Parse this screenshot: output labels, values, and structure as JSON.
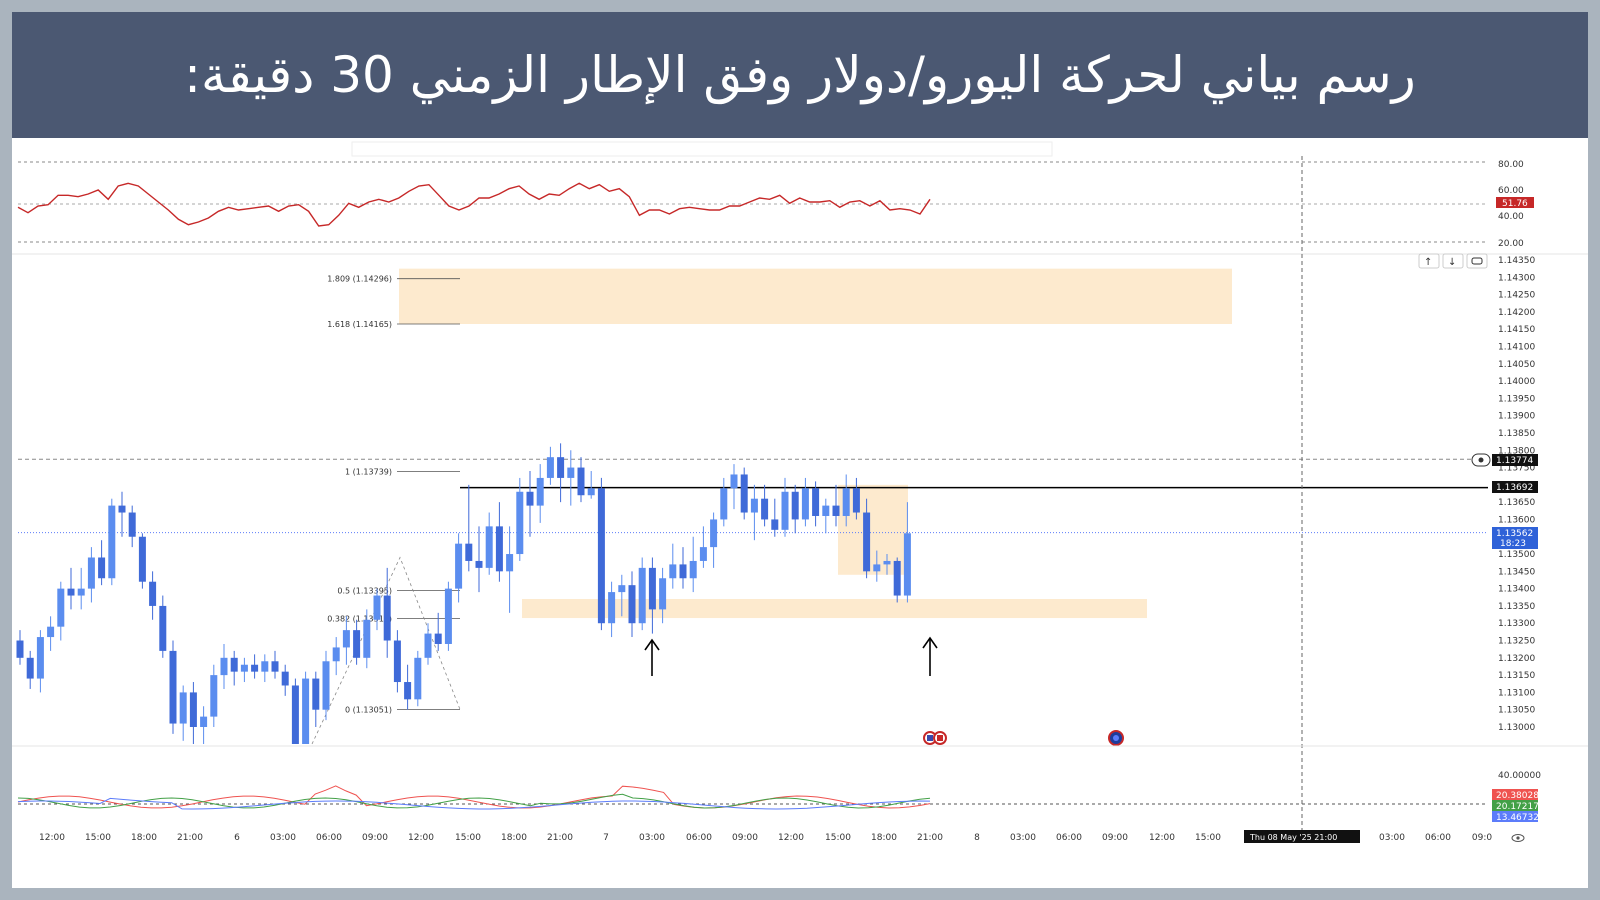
{
  "header": {
    "title": "رسم بياني لحركة اليورو/دولار وفق الإطار الزمني 30 دقيقة:"
  },
  "colors": {
    "up_candle": "#5b8def",
    "down_candle": "#3f6ad8",
    "zone_fill": "#fde6c6",
    "rsi_line": "#c62828",
    "resistance_line": "#000000",
    "adx_red": "#ef5350",
    "adx_green": "#43a047",
    "adx_blue": "#5c7cfa",
    "price_badge": "#2f62d8"
  },
  "rsi": {
    "levels": [
      "80.00",
      "60.00",
      "40.00",
      "20.00"
    ],
    "current_badge": "51.76",
    "values": [
      46,
      42,
      47,
      48,
      55,
      55,
      54,
      56,
      59,
      52,
      62,
      64,
      62,
      56,
      50,
      44,
      37,
      33,
      35,
      38,
      43,
      46,
      44,
      45,
      46,
      47,
      43,
      47,
      48,
      43,
      32,
      33,
      40,
      49,
      46,
      50,
      52,
      50,
      53,
      58,
      62,
      63,
      55,
      47,
      44,
      47,
      53,
      53,
      56,
      60,
      62,
      56,
      52,
      56,
      55,
      60,
      64,
      60,
      63,
      58,
      60,
      54,
      40,
      44,
      44,
      41,
      45,
      46,
      45,
      44,
      44,
      47,
      47,
      50,
      53,
      52,
      55,
      49,
      53,
      50,
      50,
      51,
      46,
      50,
      51,
      47,
      51,
      44,
      45,
      44,
      41,
      52
    ]
  },
  "price_axis": {
    "ticks": [
      "1.14350",
      "1.14300",
      "1.14250",
      "1.14200",
      "1.14150",
      "1.14100",
      "1.14050",
      "1.14000",
      "1.13950",
      "1.13900",
      "1.13850",
      "1.13800",
      "1.13750",
      "1.13650",
      "1.13600",
      "1.13500",
      "1.13450",
      "1.13400",
      "1.13350",
      "1.13300",
      "1.13250",
      "1.13200",
      "1.13150",
      "1.13100",
      "1.13050",
      "1.13000"
    ],
    "badge_crosshair": "1.13774",
    "badge_line": "1.13692",
    "badge_price": "1.13562",
    "badge_timer": "18:23"
  },
  "fib": {
    "levels": [
      {
        "label": "1.809 (1.14296)",
        "price": 1.14296
      },
      {
        "label": "1.618 (1.14165)",
        "price": 1.14165
      },
      {
        "label": "1 (1.13739)",
        "price": 1.13739
      },
      {
        "label": "0.5 (1.13395)",
        "price": 1.13395
      },
      {
        "label": "0.382 (1.13314)",
        "price": 1.13314
      },
      {
        "label": "0 (1.13051)",
        "price": 1.13051
      }
    ]
  },
  "levels": {
    "resistance": 1.13692,
    "crosshair": 1.13774,
    "current": 1.13562
  },
  "zones": [
    {
      "name": "target-zone",
      "top": 1.14325,
      "bottom": 1.14165
    },
    {
      "name": "support-zone",
      "top": 1.1337,
      "bottom": 1.13315
    },
    {
      "name": "consolidation-zone",
      "top": 1.137,
      "bottom": 1.1344
    }
  ],
  "time_axis": {
    "labels": [
      "12:00",
      "15:00",
      "18:00",
      "21:00",
      "6",
      "03:00",
      "06:00",
      "09:00",
      "12:00",
      "15:00",
      "18:00",
      "21:00",
      "7",
      "03:00",
      "06:00",
      "09:00",
      "12:00",
      "15:00",
      "18:00",
      "21:00",
      "8",
      "03:00",
      "06:00",
      "09:00",
      "12:00",
      "15:00",
      "03:00",
      "06:00",
      "09:0"
    ],
    "crosshair_label": "Thu 08 May '25   21:00"
  },
  "adx": {
    "top_label": "40.00000",
    "values": [
      "20.38028",
      "20.17217",
      "13.46732"
    ]
  },
  "candles": [
    [
      1.1325,
      1.1328,
      1.1318,
      1.132
    ],
    [
      1.132,
      1.1322,
      1.1311,
      1.1314
    ],
    [
      1.1314,
      1.1328,
      1.131,
      1.1326
    ],
    [
      1.1326,
      1.1332,
      1.1322,
      1.1329
    ],
    [
      1.1329,
      1.1342,
      1.1325,
      1.134
    ],
    [
      1.134,
      1.1346,
      1.1334,
      1.1338
    ],
    [
      1.1338,
      1.1346,
      1.1334,
      1.134
    ],
    [
      1.134,
      1.1352,
      1.1336,
      1.1349
    ],
    [
      1.1349,
      1.1354,
      1.1341,
      1.1343
    ],
    [
      1.1343,
      1.1366,
      1.1341,
      1.1364
    ],
    [
      1.1364,
      1.1368,
      1.1355,
      1.1362
    ],
    [
      1.1362,
      1.1364,
      1.1352,
      1.1355
    ],
    [
      1.1355,
      1.1356,
      1.134,
      1.1342
    ],
    [
      1.1342,
      1.1345,
      1.1331,
      1.1335
    ],
    [
      1.1335,
      1.1338,
      1.132,
      1.1322
    ],
    [
      1.1322,
      1.1325,
      1.1298,
      1.1301
    ],
    [
      1.1301,
      1.1312,
      1.1296,
      1.131
    ],
    [
      1.131,
      1.1313,
      1.1295,
      1.13
    ],
    [
      1.13,
      1.1306,
      1.1293,
      1.1303
    ],
    [
      1.1303,
      1.1318,
      1.13,
      1.1315
    ],
    [
      1.1315,
      1.1324,
      1.1311,
      1.132
    ],
    [
      1.132,
      1.1322,
      1.1312,
      1.1316
    ],
    [
      1.1316,
      1.132,
      1.1313,
      1.1318
    ],
    [
      1.1318,
      1.1321,
      1.1314,
      1.1316
    ],
    [
      1.1316,
      1.1321,
      1.1313,
      1.1319
    ],
    [
      1.1319,
      1.1322,
      1.1314,
      1.1316
    ],
    [
      1.1316,
      1.1318,
      1.1309,
      1.1312
    ],
    [
      1.1312,
      1.1314,
      1.129,
      1.1292
    ],
    [
      1.1292,
      1.1316,
      1.129,
      1.1314
    ],
    [
      1.1314,
      1.1316,
      1.13,
      1.1305
    ],
    [
      1.1305,
      1.1322,
      1.1302,
      1.1319
    ],
    [
      1.1319,
      1.1326,
      1.1315,
      1.1323
    ],
    [
      1.1323,
      1.1332,
      1.1318,
      1.1328
    ],
    [
      1.1328,
      1.1331,
      1.1318,
      1.132
    ],
    [
      1.132,
      1.1334,
      1.1317,
      1.1331
    ],
    [
      1.1331,
      1.134,
      1.1328,
      1.1338
    ],
    [
      1.1338,
      1.1346,
      1.132,
      1.1325
    ],
    [
      1.1325,
      1.1328,
      1.131,
      1.1313
    ],
    [
      1.1313,
      1.1318,
      1.1305,
      1.1308
    ],
    [
      1.1308,
      1.1322,
      1.1306,
      1.132
    ],
    [
      1.132,
      1.133,
      1.1318,
      1.1327
    ],
    [
      1.1327,
      1.1333,
      1.1322,
      1.1324
    ],
    [
      1.1324,
      1.1342,
      1.1322,
      1.134
    ],
    [
      1.134,
      1.1356,
      1.1336,
      1.1353
    ],
    [
      1.1353,
      1.137,
      1.1345,
      1.1348
    ],
    [
      1.1348,
      1.1358,
      1.1339,
      1.1346
    ],
    [
      1.1346,
      1.1362,
      1.1344,
      1.1358
    ],
    [
      1.1358,
      1.1365,
      1.1342,
      1.1345
    ],
    [
      1.1345,
      1.1358,
      1.1333,
      1.135
    ],
    [
      1.135,
      1.1372,
      1.1348,
      1.1368
    ],
    [
      1.1368,
      1.1374,
      1.1355,
      1.1364
    ],
    [
      1.1364,
      1.1376,
      1.1359,
      1.1372
    ],
    [
      1.1372,
      1.1381,
      1.137,
      1.1378
    ],
    [
      1.1378,
      1.1382,
      1.1365,
      1.1372
    ],
    [
      1.1372,
      1.138,
      1.1364,
      1.1375
    ],
    [
      1.1375,
      1.1378,
      1.1365,
      1.1367
    ],
    [
      1.1367,
      1.1374,
      1.1366,
      1.1369
    ],
    [
      1.1369,
      1.1372,
      1.1328,
      1.133
    ],
    [
      1.133,
      1.1342,
      1.1326,
      1.1339
    ],
    [
      1.1339,
      1.1344,
      1.1332,
      1.1341
    ],
    [
      1.1341,
      1.1345,
      1.1326,
      1.133
    ],
    [
      1.133,
      1.1349,
      1.1328,
      1.1346
    ],
    [
      1.1346,
      1.1349,
      1.1327,
      1.1334
    ],
    [
      1.1334,
      1.1346,
      1.133,
      1.1343
    ],
    [
      1.1343,
      1.1353,
      1.134,
      1.1347
    ],
    [
      1.1347,
      1.1352,
      1.134,
      1.1343
    ],
    [
      1.1343,
      1.1355,
      1.1339,
      1.1348
    ],
    [
      1.1348,
      1.1358,
      1.1346,
      1.1352
    ],
    [
      1.1352,
      1.1362,
      1.1346,
      1.136
    ],
    [
      1.136,
      1.1372,
      1.1358,
      1.1369
    ],
    [
      1.1369,
      1.1376,
      1.1363,
      1.1373
    ],
    [
      1.1373,
      1.1375,
      1.136,
      1.1362
    ],
    [
      1.1362,
      1.137,
      1.1354,
      1.1366
    ],
    [
      1.1366,
      1.137,
      1.1358,
      1.136
    ],
    [
      1.136,
      1.1366,
      1.1355,
      1.1357
    ],
    [
      1.1357,
      1.1372,
      1.1355,
      1.1368
    ],
    [
      1.1368,
      1.137,
      1.1356,
      1.136
    ],
    [
      1.136,
      1.1372,
      1.1358,
      1.1369
    ],
    [
      1.1369,
      1.1371,
      1.1358,
      1.1361
    ],
    [
      1.1361,
      1.1366,
      1.1356,
      1.1364
    ],
    [
      1.1364,
      1.137,
      1.1358,
      1.1361
    ],
    [
      1.1361,
      1.1373,
      1.1358,
      1.1369
    ],
    [
      1.1369,
      1.1372,
      1.136,
      1.1362
    ],
    [
      1.1362,
      1.1366,
      1.1343,
      1.1345
    ],
    [
      1.1345,
      1.1351,
      1.1342,
      1.1347
    ],
    [
      1.1347,
      1.135,
      1.1344,
      1.1348
    ],
    [
      1.1348,
      1.1349,
      1.1336,
      1.1338
    ],
    [
      1.1338,
      1.1365,
      1.1336,
      1.1356
    ]
  ],
  "icons": {
    "event_flag_1": "us-flag-icon",
    "event_flag_2": "eu-flag-icon",
    "event_circle": "globe-event-icon",
    "arrow_up": "up-arrow-button",
    "arrow_down": "down-arrow-button",
    "reset": "reset-icon"
  }
}
